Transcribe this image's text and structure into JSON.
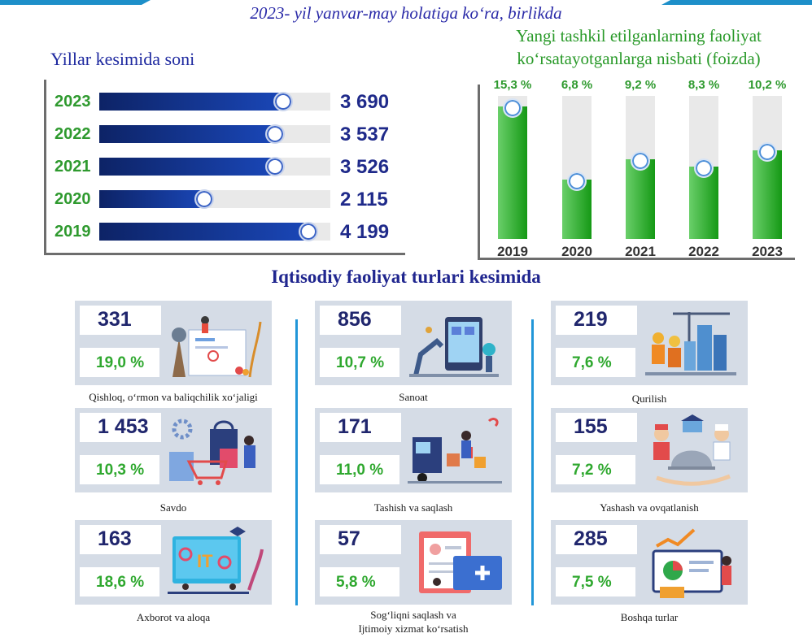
{
  "header": {
    "title": "2023- yil yanvar-may holatiga ko‘ra, birlikda"
  },
  "left_section": {
    "title": "Yillar kesimida soni"
  },
  "right_section": {
    "title_line1": "Yangi tashkil etilganlarning faoliyat",
    "title_line2": "ko‘rsatayotganlarga nisbati (foizda)"
  },
  "sector_section": {
    "title": "Iqtisodiy faoliyat turlari kesimida"
  },
  "colors": {
    "blue_bar": "#1a47b8",
    "green_bar": "#159915",
    "accent_blue": "#2196d8",
    "card_bg": "#d5dce6"
  },
  "chart_data": [
    {
      "type": "bar",
      "orientation": "horizontal",
      "title": "Yillar kesimida soni",
      "categories": [
        "2023",
        "2022",
        "2021",
        "2020",
        "2019"
      ],
      "values": [
        3690,
        3537,
        3526,
        2115,
        4199
      ],
      "value_labels": [
        "3 690",
        "3 537",
        "3 526",
        "2 115",
        "4 199"
      ],
      "xlim": [
        0,
        4600
      ]
    },
    {
      "type": "bar",
      "orientation": "vertical",
      "title": "Yangi tashkil etilganlarning faoliyat ko‘rsatayotganlarga nisbati (foizda)",
      "categories": [
        "2019",
        "2020",
        "2021",
        "2022",
        "2023"
      ],
      "values": [
        15.3,
        6.8,
        9.2,
        8.3,
        10.2
      ],
      "value_labels": [
        "15,3 %",
        "6,8 %",
        "9,2 %",
        "8,3 %",
        "10,2 %"
      ],
      "ylim": [
        0,
        16.5
      ]
    }
  ],
  "sectors": [
    {
      "count": "331",
      "percent": "19,0 %",
      "label": "Qishloq, o‘rmon va baliqchilik xo‘jaligi",
      "icon": "agriculture-icon"
    },
    {
      "count": "856",
      "percent": "10,7 %",
      "label": "Sanoat",
      "icon": "industry-robot-icon"
    },
    {
      "count": "219",
      "percent": "7,6 %",
      "label": "Qurilish",
      "icon": "construction-icon"
    },
    {
      "count": "1 453",
      "percent": "10,3 %",
      "label": "Savdo",
      "icon": "shopping-icon"
    },
    {
      "count": "171",
      "percent": "11,0 %",
      "label": "Tashish va saqlash",
      "icon": "transport-icon"
    },
    {
      "count": "155",
      "percent": "7,2 %",
      "label": "Yashash va ovqatlanish",
      "icon": "hospitality-icon"
    },
    {
      "count": "163",
      "percent": "18,6 %",
      "label": "Axborot va aloqa",
      "icon": "it-icon"
    },
    {
      "count": "57",
      "percent": "5,8 %",
      "label_line1": "Sog‘liqni saqlash va",
      "label_line2": "Ijtimoiy xizmat ko‘rsatish",
      "icon": "healthcare-icon"
    },
    {
      "count": "285",
      "percent": "7,5 %",
      "label": "Boshqa turlar",
      "icon": "analytics-icon"
    }
  ]
}
